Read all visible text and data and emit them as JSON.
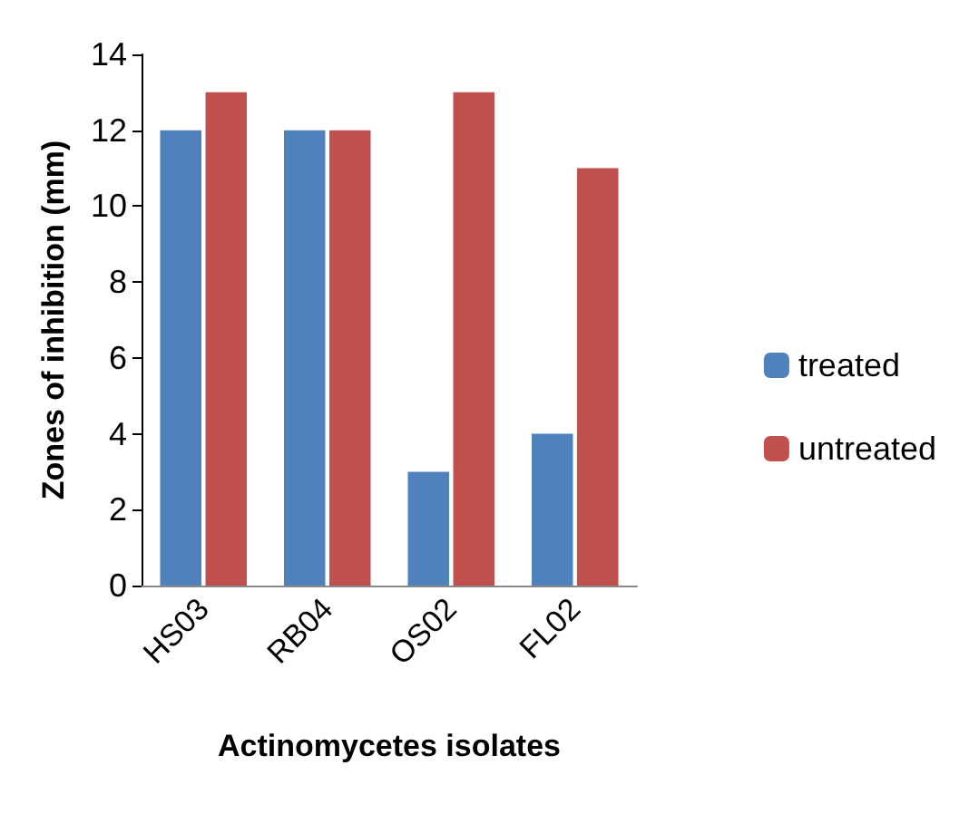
{
  "chart_data": {
    "type": "bar",
    "xlabel": "Actinomycetes isolates",
    "ylabel": "Zones of inhibition (mm)",
    "categories": [
      "HS03",
      "RB04",
      "OS02",
      "FL02"
    ],
    "series": [
      {
        "name": "treated",
        "color": "#4f81bd",
        "values": [
          12,
          12,
          3,
          4
        ]
      },
      {
        "name": "untreated",
        "color": "#c0504d",
        "values": [
          13,
          12,
          13,
          11
        ]
      }
    ],
    "ylim": [
      0,
      14
    ],
    "yticks": [
      0,
      2,
      4,
      6,
      8,
      10,
      12,
      14
    ],
    "grid": false,
    "legend": "right"
  }
}
